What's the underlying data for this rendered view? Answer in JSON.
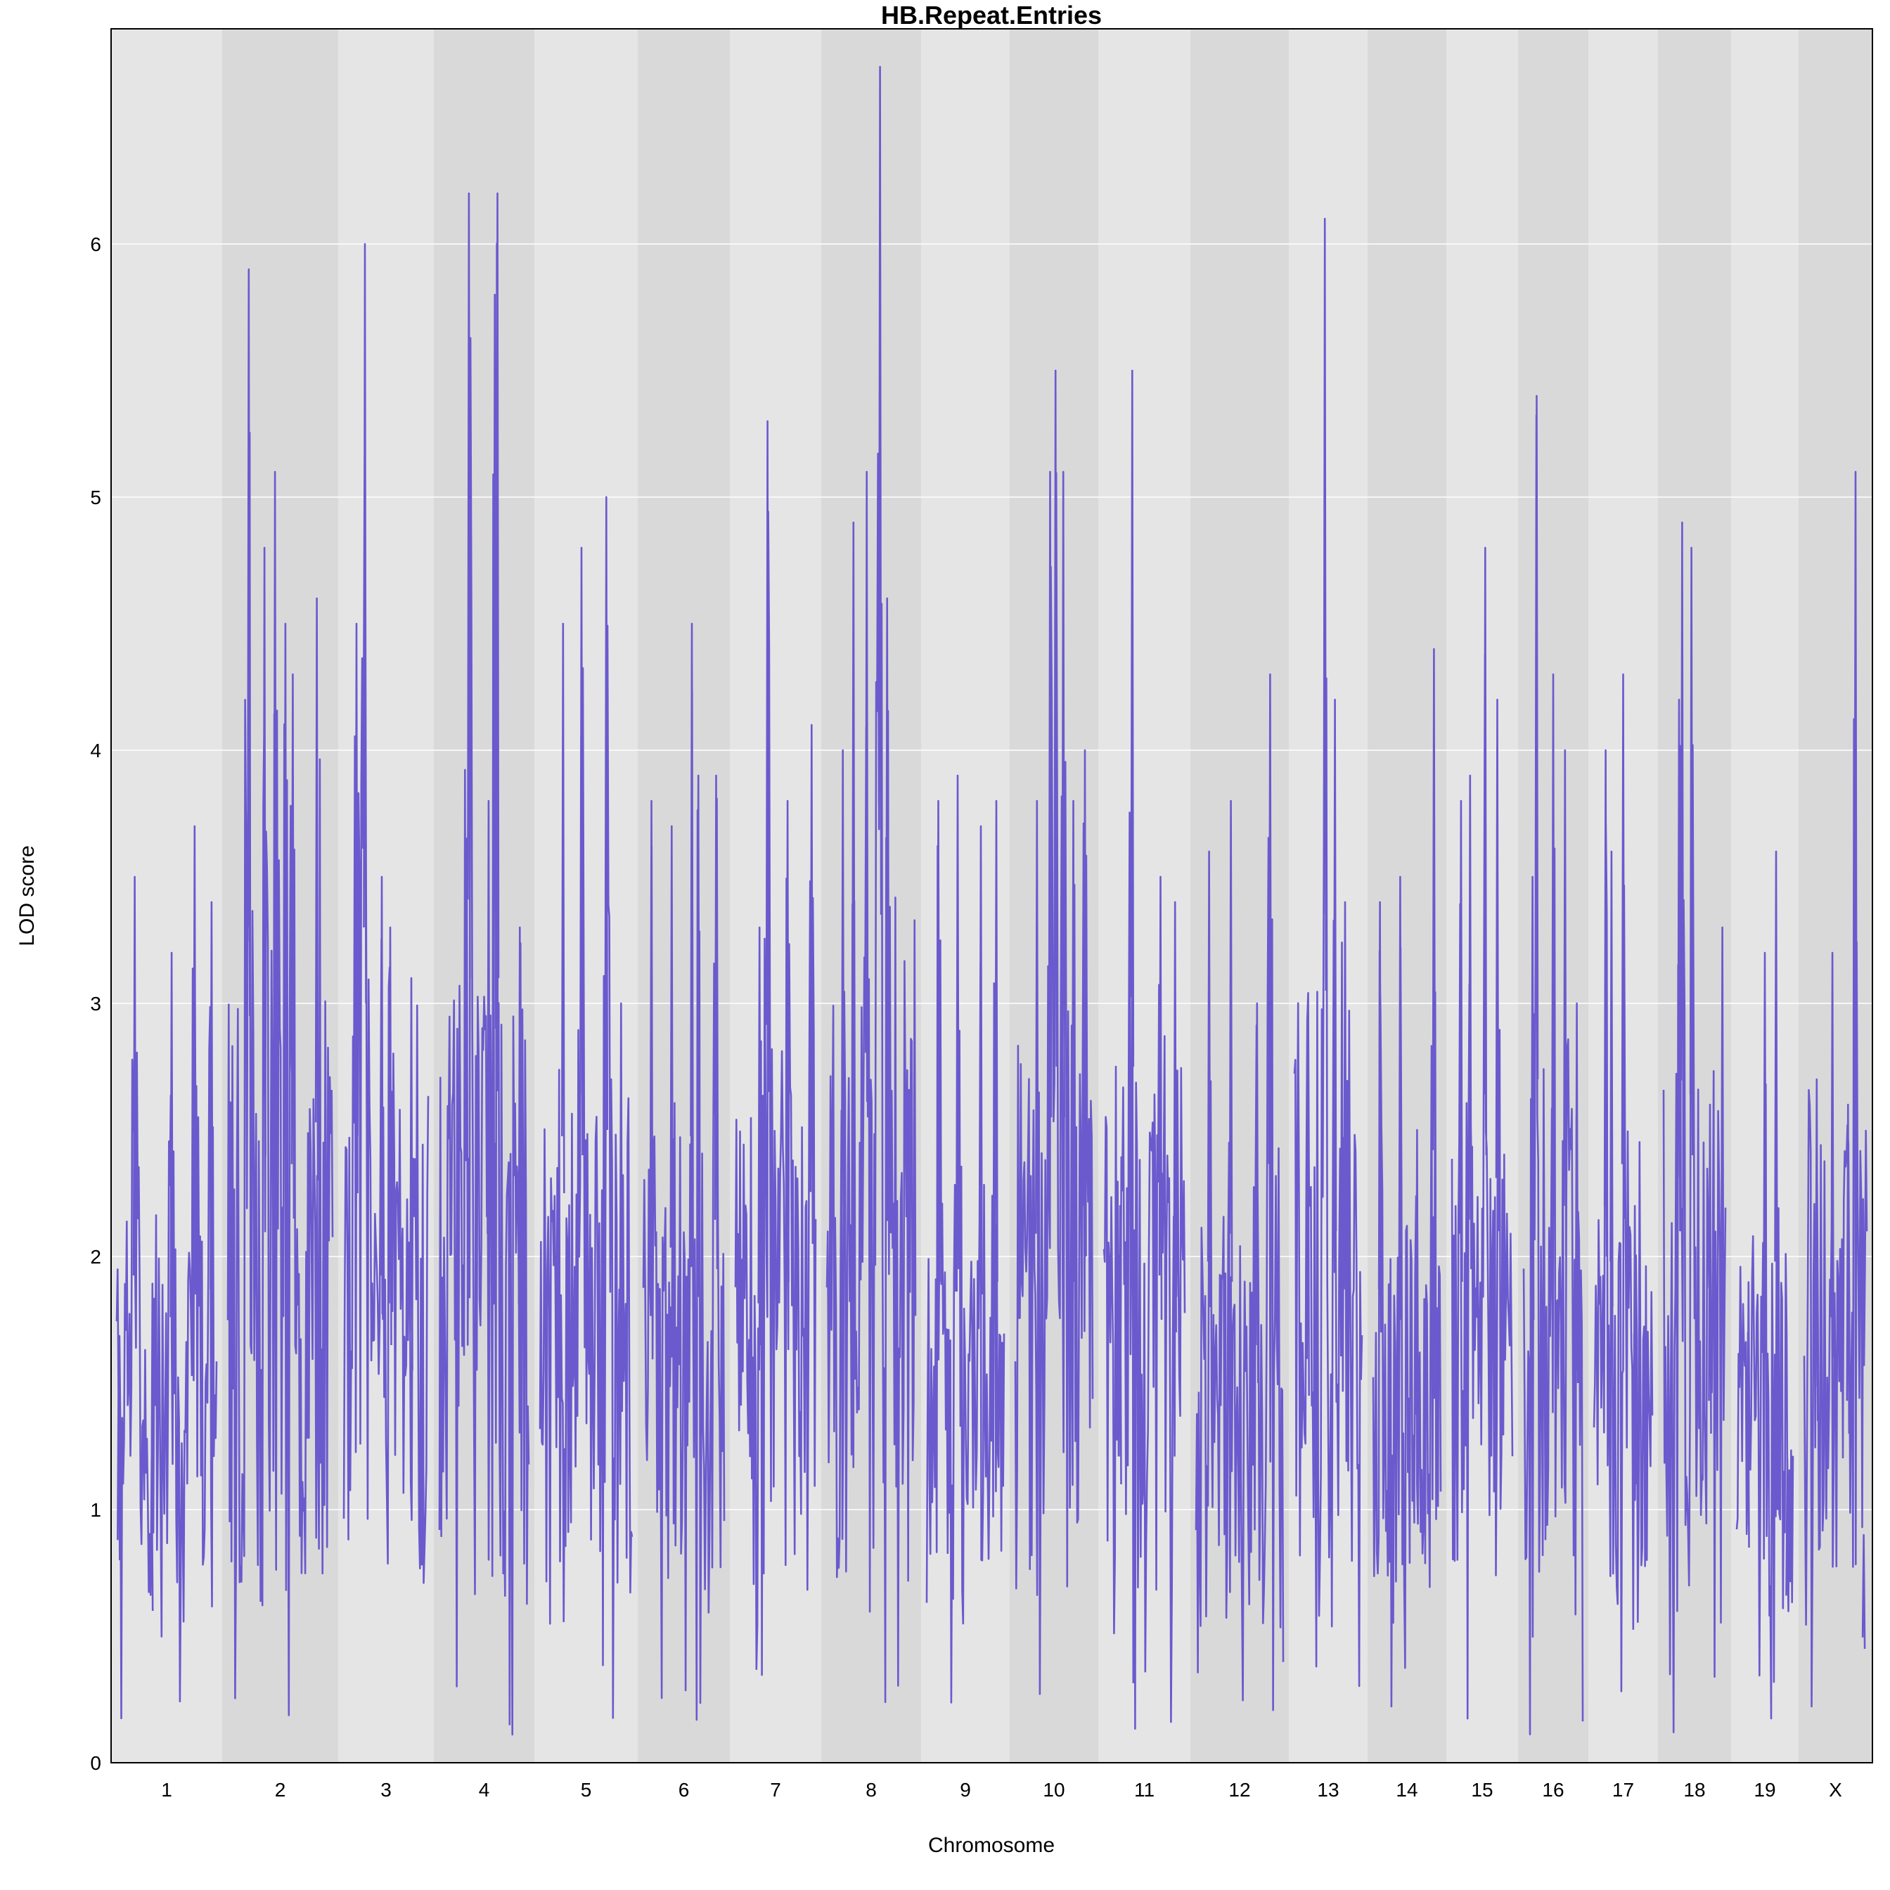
{
  "chart_data": {
    "type": "line",
    "title": "HB.Repeat.Entries",
    "xlabel": "Chromosome",
    "ylabel": "LOD score",
    "ylim": [
      0,
      6.85
    ],
    "yticks": [
      0,
      1,
      2,
      3,
      4,
      5,
      6
    ],
    "grid": true,
    "legend": "none",
    "colors": {
      "line": "#6a5acd",
      "band_light": "#e5e5e5",
      "band_dark": "#d9d9d9",
      "grid": "#ffffff",
      "frame": "#000000"
    },
    "chromosomes": [
      {
        "label": "1",
        "peaks": [
          [
            0.02,
            1.6
          ],
          [
            0.18,
            3.5
          ],
          [
            0.35,
            1.2
          ],
          [
            0.55,
            3.2
          ],
          [
            0.78,
            3.7
          ],
          [
            0.95,
            3.4
          ]
        ]
      },
      {
        "label": "2",
        "peaks": [
          [
            0.2,
            5.9
          ],
          [
            0.35,
            4.8
          ],
          [
            0.45,
            5.1
          ],
          [
            0.55,
            4.5
          ],
          [
            0.62,
            4.3
          ],
          [
            0.85,
            4.6
          ]
        ]
      },
      {
        "label": "3",
        "peaks": [
          [
            0.15,
            4.5
          ],
          [
            0.25,
            6.0
          ],
          [
            0.45,
            3.5
          ],
          [
            0.55,
            3.3
          ],
          [
            0.8,
            3.1
          ]
        ]
      },
      {
        "label": "4",
        "peaks": [
          [
            0.2,
            2.9
          ],
          [
            0.33,
            6.2
          ],
          [
            0.55,
            3.8
          ],
          [
            0.62,
            5.8
          ],
          [
            0.65,
            6.2
          ],
          [
            0.9,
            3.3
          ]
        ]
      },
      {
        "label": "5",
        "peaks": [
          [
            0.25,
            4.5
          ],
          [
            0.45,
            4.8
          ],
          [
            0.72,
            5.0
          ],
          [
            0.88,
            3.0
          ]
        ]
      },
      {
        "label": "6",
        "peaks": [
          [
            0.1,
            3.8
          ],
          [
            0.35,
            3.7
          ],
          [
            0.6,
            4.5
          ],
          [
            0.68,
            3.9
          ],
          [
            0.9,
            3.9
          ]
        ]
      },
      {
        "label": "7",
        "peaks": [
          [
            0.3,
            3.3
          ],
          [
            0.4,
            5.3
          ],
          [
            0.65,
            3.8
          ],
          [
            0.95,
            4.1
          ]
        ]
      },
      {
        "label": "8",
        "peaks": [
          [
            0.18,
            4.0
          ],
          [
            0.3,
            4.9
          ],
          [
            0.45,
            5.1
          ],
          [
            0.6,
            6.7
          ],
          [
            0.68,
            4.6
          ]
        ]
      },
      {
        "label": "9",
        "peaks": [
          [
            0.15,
            3.8
          ],
          [
            0.4,
            3.9
          ],
          [
            0.7,
            3.7
          ],
          [
            0.9,
            3.8
          ]
        ]
      },
      {
        "label": "10",
        "peaks": [
          [
            0.28,
            3.8
          ],
          [
            0.45,
            5.1
          ],
          [
            0.52,
            5.5
          ],
          [
            0.62,
            5.1
          ],
          [
            0.75,
            3.8
          ],
          [
            0.9,
            4.0
          ]
        ]
      },
      {
        "label": "11",
        "peaks": [
          [
            0.2,
            2.2
          ],
          [
            0.35,
            5.5
          ],
          [
            0.7,
            3.5
          ],
          [
            0.88,
            3.4
          ]
        ]
      },
      {
        "label": "12",
        "peaks": [
          [
            0.15,
            3.6
          ],
          [
            0.4,
            3.8
          ],
          [
            0.7,
            3.0
          ],
          [
            0.85,
            4.3
          ]
        ]
      },
      {
        "label": "13",
        "peaks": [
          [
            0.2,
            2.9
          ],
          [
            0.45,
            6.1
          ],
          [
            0.6,
            4.2
          ],
          [
            0.75,
            3.4
          ]
        ]
      },
      {
        "label": "14",
        "peaks": [
          [
            0.1,
            3.4
          ],
          [
            0.4,
            3.5
          ],
          [
            0.65,
            2.5
          ],
          [
            0.9,
            4.4
          ]
        ]
      },
      {
        "label": "15",
        "peaks": [
          [
            0.15,
            3.8
          ],
          [
            0.3,
            3.9
          ],
          [
            0.55,
            4.8
          ],
          [
            0.75,
            4.2
          ]
        ]
      },
      {
        "label": "16",
        "peaks": [
          [
            0.15,
            3.5
          ],
          [
            0.22,
            5.4
          ],
          [
            0.5,
            4.3
          ],
          [
            0.7,
            4.0
          ],
          [
            0.9,
            3.0
          ]
        ]
      },
      {
        "label": "17",
        "peaks": [
          [
            0.2,
            4.0
          ],
          [
            0.3,
            3.6
          ],
          [
            0.5,
            4.3
          ],
          [
            0.7,
            2.2
          ]
        ]
      },
      {
        "label": "18",
        "peaks": [
          [
            0.25,
            4.2
          ],
          [
            0.3,
            4.9
          ],
          [
            0.45,
            4.8
          ],
          [
            0.75,
            2.6
          ],
          [
            0.95,
            3.3
          ]
        ]
      },
      {
        "label": "19",
        "peaks": [
          [
            0.2,
            1.7
          ],
          [
            0.5,
            3.2
          ],
          [
            0.7,
            3.6
          ],
          [
            0.9,
            1.2
          ]
        ]
      },
      {
        "label": "X",
        "peaks": [
          [
            0.2,
            2.7
          ],
          [
            0.45,
            3.2
          ],
          [
            0.7,
            2.6
          ],
          [
            0.82,
            5.1
          ],
          [
            0.95,
            0.9
          ]
        ]
      }
    ]
  }
}
